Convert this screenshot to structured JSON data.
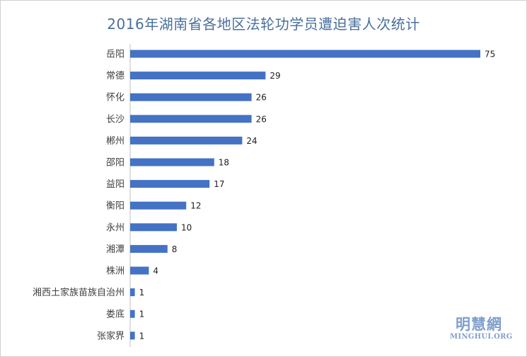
{
  "chart_data": {
    "type": "bar",
    "orientation": "horizontal",
    "title": "2016年湖南省各地区法轮功学员遭迫害人次统计",
    "categories": [
      "岳阳",
      "常德",
      "怀化",
      "长沙",
      "郴州",
      "邵阳",
      "益阳",
      "衡阳",
      "永州",
      "湘潭",
      "株洲",
      "湘西土家族苗族自治州",
      "娄底",
      "张家界"
    ],
    "values": [
      75,
      29,
      26,
      26,
      24,
      18,
      17,
      12,
      10,
      8,
      4,
      1,
      1,
      1
    ],
    "xlim": [
      0,
      75
    ],
    "grid": false,
    "legend": "none",
    "bar_color": "#4472c4"
  },
  "watermark": {
    "main": "明慧網",
    "sub": "MINGHUI.ORG"
  }
}
